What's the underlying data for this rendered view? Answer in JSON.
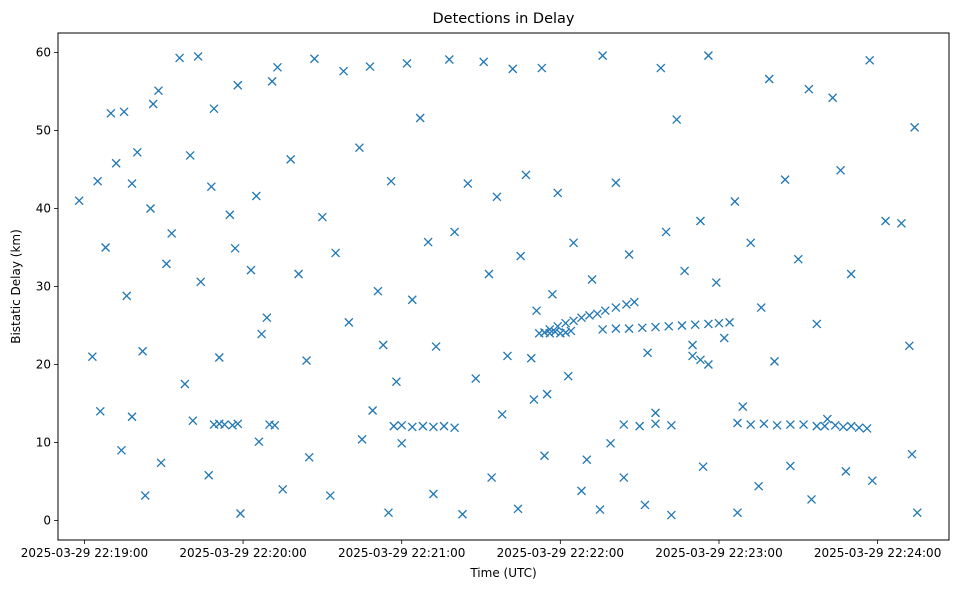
{
  "chart_data": {
    "type": "scatter",
    "title": "Detections in Delay",
    "xlabel": "Time (UTC)",
    "ylabel": "Bistatic Delay (km)",
    "x_tick_labels": [
      "2025-03-29 22:19:00",
      "2025-03-29 22:20:00",
      "2025-03-29 22:21:00",
      "2025-03-29 22:22:00",
      "2025-03-29 22:23:00",
      "2025-03-29 22:24:00"
    ],
    "y_tick_labels": [
      "0",
      "10",
      "20",
      "30",
      "40",
      "50",
      "60"
    ],
    "xlim": [
      "2025-03-29 22:18:50",
      "2025-03-29 22:24:27"
    ],
    "ylim": [
      -2.5,
      62.5
    ],
    "marker": "x",
    "color": "#1f77b4",
    "grid": false,
    "series": [
      {
        "points": [
          [
            "2025-03-29 22:19:10",
            52.2
          ],
          [
            "2025-03-29 22:19:15",
            52.4
          ],
          [
            "2025-03-29 22:19:26",
            53.4
          ],
          [
            "2025-03-29 22:19:28",
            55.1
          ],
          [
            "2025-03-29 22:19:36",
            59.3
          ],
          [
            "2025-03-29 22:19:43",
            59.5
          ],
          [
            "2025-03-29 22:19:49",
            52.8
          ],
          [
            "2025-03-29 22:19:58",
            55.8
          ],
          [
            "2025-03-29 22:20:13",
            58.1
          ],
          [
            "2025-03-29 22:20:27",
            59.2
          ],
          [
            "2025-03-29 22:20:38",
            57.6
          ],
          [
            "2025-03-29 22:20:48",
            58.2
          ],
          [
            "2025-03-29 22:21:02",
            58.6
          ],
          [
            "2025-03-29 22:21:18",
            59.1
          ],
          [
            "2025-03-29 22:21:31",
            58.8
          ],
          [
            "2025-03-29 22:21:42",
            57.9
          ],
          [
            "2025-03-29 22:21:53",
            58.0
          ],
          [
            "2025-03-29 22:22:16",
            59.6
          ],
          [
            "2025-03-29 22:22:38",
            58.0
          ],
          [
            "2025-03-29 22:22:56",
            59.6
          ],
          [
            "2025-03-29 22:23:19",
            56.6
          ],
          [
            "2025-03-29 22:23:34",
            55.3
          ],
          [
            "2025-03-29 22:23:57",
            59.0
          ],
          [
            "2025-03-29 22:24:14",
            50.4
          ],
          [
            "2025-03-29 22:19:05",
            43.5
          ],
          [
            "2025-03-29 22:19:12",
            45.8
          ],
          [
            "2025-03-29 22:19:20",
            47.2
          ],
          [
            "2025-03-29 22:19:25",
            40.0
          ],
          [
            "2025-03-29 22:19:33",
            36.8
          ],
          [
            "2025-03-29 22:19:40",
            46.8
          ],
          [
            "2025-03-29 22:19:48",
            42.8
          ],
          [
            "2025-03-29 22:19:55",
            39.2
          ],
          [
            "2025-03-29 22:20:05",
            41.6
          ],
          [
            "2025-03-29 22:20:18",
            46.3
          ],
          [
            "2025-03-29 22:20:30",
            38.9
          ],
          [
            "2025-03-29 22:20:44",
            47.8
          ],
          [
            "2025-03-29 22:20:56",
            43.5
          ],
          [
            "2025-03-29 22:21:10",
            35.7
          ],
          [
            "2025-03-29 22:21:25",
            43.2
          ],
          [
            "2025-03-29 22:21:36",
            41.5
          ],
          [
            "2025-03-29 22:21:47",
            44.3
          ],
          [
            "2025-03-29 22:21:59",
            42.0
          ],
          [
            "2025-03-29 22:22:05",
            35.6
          ],
          [
            "2025-03-29 22:22:21",
            43.3
          ],
          [
            "2025-03-29 22:22:40",
            37.0
          ],
          [
            "2025-03-29 22:22:53",
            38.4
          ],
          [
            "2025-03-29 22:23:06",
            40.9
          ],
          [
            "2025-03-29 22:23:25",
            43.7
          ],
          [
            "2025-03-29 22:23:46",
            44.9
          ],
          [
            "2025-03-29 22:24:03",
            38.4
          ],
          [
            "2025-03-29 22:18:58",
            41.0
          ],
          [
            "2025-03-29 22:19:18",
            43.2
          ],
          [
            "2025-03-29 22:20:11",
            56.3
          ],
          [
            "2025-03-29 22:21:07",
            51.6
          ],
          [
            "2025-03-29 22:22:44",
            51.4
          ],
          [
            "2025-03-29 22:23:43",
            54.2
          ],
          [
            "2025-03-29 22:19:08",
            35.0
          ],
          [
            "2025-03-29 22:19:16",
            28.8
          ],
          [
            "2025-03-29 22:19:31",
            32.9
          ],
          [
            "2025-03-29 22:19:44",
            30.6
          ],
          [
            "2025-03-29 22:19:57",
            34.9
          ],
          [
            "2025-03-29 22:20:09",
            26.0
          ],
          [
            "2025-03-29 22:20:21",
            31.6
          ],
          [
            "2025-03-29 22:20:35",
            34.3
          ],
          [
            "2025-03-29 22:20:51",
            29.4
          ],
          [
            "2025-03-29 22:21:04",
            28.3
          ],
          [
            "2025-03-29 22:21:20",
            37.0
          ],
          [
            "2025-03-29 22:21:33",
            31.6
          ],
          [
            "2025-03-29 22:21:45",
            33.9
          ],
          [
            "2025-03-29 22:21:57",
            29.0
          ],
          [
            "2025-03-29 22:22:12",
            30.9
          ],
          [
            "2025-03-29 22:22:26",
            34.1
          ],
          [
            "2025-03-29 22:22:47",
            32.0
          ],
          [
            "2025-03-29 22:22:59",
            30.5
          ],
          [
            "2025-03-29 22:23:12",
            35.6
          ],
          [
            "2025-03-29 22:23:30",
            33.5
          ],
          [
            "2025-03-29 22:23:50",
            31.6
          ],
          [
            "2025-03-29 22:24:09",
            38.1
          ],
          [
            "2025-03-29 22:20:03",
            32.1
          ],
          [
            "2025-03-29 22:21:51",
            26.9
          ],
          [
            "2025-03-29 22:23:16",
            27.3
          ],
          [
            "2025-03-29 22:19:03",
            21.0
          ],
          [
            "2025-03-29 22:19:22",
            21.7
          ],
          [
            "2025-03-29 22:19:38",
            17.5
          ],
          [
            "2025-03-29 22:19:51",
            20.9
          ],
          [
            "2025-03-29 22:20:07",
            23.9
          ],
          [
            "2025-03-29 22:20:24",
            20.5
          ],
          [
            "2025-03-29 22:20:40",
            25.4
          ],
          [
            "2025-03-29 22:20:53",
            22.5
          ],
          [
            "2025-03-29 22:21:13",
            22.3
          ],
          [
            "2025-03-29 22:21:28",
            18.2
          ],
          [
            "2025-03-29 22:21:40",
            21.1
          ],
          [
            "2025-03-29 22:21:49",
            20.8
          ],
          [
            "2025-03-29 22:22:03",
            18.5
          ],
          [
            "2025-03-29 22:22:33",
            21.5
          ],
          [
            "2025-03-29 22:22:50",
            22.5
          ],
          [
            "2025-03-29 22:23:02",
            23.4
          ],
          [
            "2025-03-29 22:23:21",
            20.4
          ],
          [
            "2025-03-29 22:23:37",
            25.2
          ],
          [
            "2025-03-29 22:24:12",
            22.4
          ],
          [
            "2025-03-29 22:20:58",
            17.8
          ],
          [
            "2025-03-29 22:19:06",
            14.0
          ],
          [
            "2025-03-29 22:19:14",
            9.0
          ],
          [
            "2025-03-29 22:19:23",
            3.2
          ],
          [
            "2025-03-29 22:19:29",
            7.4
          ],
          [
            "2025-03-29 22:19:41",
            12.8
          ],
          [
            "2025-03-29 22:19:47",
            5.8
          ],
          [
            "2025-03-29 22:19:59",
            0.9
          ],
          [
            "2025-03-29 22:20:06",
            10.1
          ],
          [
            "2025-03-29 22:20:15",
            4.0
          ],
          [
            "2025-03-29 22:20:25",
            8.1
          ],
          [
            "2025-03-29 22:20:33",
            3.2
          ],
          [
            "2025-03-29 22:20:45",
            10.4
          ],
          [
            "2025-03-29 22:20:55",
            1.0
          ],
          [
            "2025-03-29 22:21:00",
            9.9
          ],
          [
            "2025-03-29 22:21:12",
            3.4
          ],
          [
            "2025-03-29 22:21:23",
            0.8
          ],
          [
            "2025-03-29 22:21:34",
            5.5
          ],
          [
            "2025-03-29 22:21:44",
            1.5
          ],
          [
            "2025-03-29 22:21:54",
            8.3
          ],
          [
            "2025-03-29 22:22:08",
            3.8
          ],
          [
            "2025-03-29 22:22:15",
            1.4
          ],
          [
            "2025-03-29 22:22:24",
            5.5
          ],
          [
            "2025-03-29 22:22:32",
            2.0
          ],
          [
            "2025-03-29 22:22:42",
            0.7
          ],
          [
            "2025-03-29 22:22:54",
            6.9
          ],
          [
            "2025-03-29 22:23:07",
            1.0
          ],
          [
            "2025-03-29 22:23:15",
            4.4
          ],
          [
            "2025-03-29 22:23:27",
            7.0
          ],
          [
            "2025-03-29 22:23:35",
            2.7
          ],
          [
            "2025-03-29 22:23:48",
            6.3
          ],
          [
            "2025-03-29 22:23:58",
            5.1
          ],
          [
            "2025-03-29 22:24:15",
            1.0
          ],
          [
            "2025-03-29 22:24:13",
            8.5
          ],
          [
            "2025-03-29 22:19:18",
            13.3
          ],
          [
            "2025-03-29 22:21:38",
            13.6
          ],
          [
            "2025-03-29 22:22:36",
            13.8
          ],
          [
            "2025-03-29 22:20:49",
            14.1
          ],
          [
            "2025-03-29 22:23:41",
            13.0
          ],
          [
            "2025-03-29 22:19:49",
            12.3
          ],
          [
            "2025-03-29 22:19:51",
            12.4
          ],
          [
            "2025-03-29 22:19:53",
            12.3
          ],
          [
            "2025-03-29 22:19:56",
            12.2
          ],
          [
            "2025-03-29 22:19:58",
            12.4
          ],
          [
            "2025-03-29 22:20:10",
            12.3
          ],
          [
            "2025-03-29 22:20:12",
            12.2
          ],
          [
            "2025-03-29 22:20:57",
            12.1
          ],
          [
            "2025-03-29 22:21:00",
            12.2
          ],
          [
            "2025-03-29 22:21:04",
            12.0
          ],
          [
            "2025-03-29 22:21:08",
            12.1
          ],
          [
            "2025-03-29 22:21:12",
            12.0
          ],
          [
            "2025-03-29 22:21:16",
            12.1
          ],
          [
            "2025-03-29 22:21:20",
            11.9
          ],
          [
            "2025-03-29 22:22:24",
            12.3
          ],
          [
            "2025-03-29 22:22:30",
            12.1
          ],
          [
            "2025-03-29 22:22:36",
            12.4
          ],
          [
            "2025-03-29 22:22:42",
            12.2
          ],
          [
            "2025-03-29 22:23:07",
            12.5
          ],
          [
            "2025-03-29 22:23:12",
            12.3
          ],
          [
            "2025-03-29 22:23:17",
            12.4
          ],
          [
            "2025-03-29 22:23:22",
            12.2
          ],
          [
            "2025-03-29 22:23:27",
            12.3
          ],
          [
            "2025-03-29 22:23:32",
            12.3
          ],
          [
            "2025-03-29 22:23:37",
            12.1
          ],
          [
            "2025-03-29 22:23:40",
            12.1
          ],
          [
            "2025-03-29 22:23:44",
            12.2
          ],
          [
            "2025-03-29 22:23:47",
            12.0
          ],
          [
            "2025-03-29 22:23:50",
            12.1
          ],
          [
            "2025-03-29 22:23:53",
            11.9
          ],
          [
            "2025-03-29 22:23:56",
            11.8
          ],
          [
            "2025-03-29 22:21:52",
            24.0
          ],
          [
            "2025-03-29 22:21:54",
            24.1
          ],
          [
            "2025-03-29 22:21:56",
            24.0
          ],
          [
            "2025-03-29 22:21:58",
            24.2
          ],
          [
            "2025-03-29 22:22:00",
            24.0
          ],
          [
            "2025-03-29 22:22:02",
            24.1
          ],
          [
            "2025-03-29 22:22:04",
            24.3
          ],
          [
            "2025-03-29 22:21:56",
            24.5
          ],
          [
            "2025-03-29 22:21:59",
            24.9
          ],
          [
            "2025-03-29 22:22:02",
            25.3
          ],
          [
            "2025-03-29 22:22:05",
            25.6
          ],
          [
            "2025-03-29 22:22:08",
            26.0
          ],
          [
            "2025-03-29 22:22:11",
            26.3
          ],
          [
            "2025-03-29 22:22:14",
            26.5
          ],
          [
            "2025-03-29 22:22:17",
            26.9
          ],
          [
            "2025-03-29 22:22:21",
            27.3
          ],
          [
            "2025-03-29 22:22:25",
            27.7
          ],
          [
            "2025-03-29 22:22:28",
            28.0
          ],
          [
            "2025-03-29 22:22:16",
            24.5
          ],
          [
            "2025-03-29 22:22:21",
            24.6
          ],
          [
            "2025-03-29 22:22:26",
            24.6
          ],
          [
            "2025-03-29 22:22:31",
            24.7
          ],
          [
            "2025-03-29 22:22:36",
            24.8
          ],
          [
            "2025-03-29 22:22:41",
            24.9
          ],
          [
            "2025-03-29 22:22:46",
            25.0
          ],
          [
            "2025-03-29 22:22:51",
            25.1
          ],
          [
            "2025-03-29 22:22:56",
            25.2
          ],
          [
            "2025-03-29 22:23:00",
            25.3
          ],
          [
            "2025-03-29 22:23:04",
            25.4
          ],
          [
            "2025-03-29 22:22:50",
            21.1
          ],
          [
            "2025-03-29 22:22:53",
            20.6
          ],
          [
            "2025-03-29 22:22:56",
            20.0
          ],
          [
            "2025-03-29 22:21:50",
            15.5
          ],
          [
            "2025-03-29 22:21:55",
            16.2
          ],
          [
            "2025-03-29 22:22:10",
            7.8
          ],
          [
            "2025-03-29 22:22:19",
            9.9
          ],
          [
            "2025-03-29 22:23:09",
            14.6
          ]
        ]
      }
    ]
  }
}
